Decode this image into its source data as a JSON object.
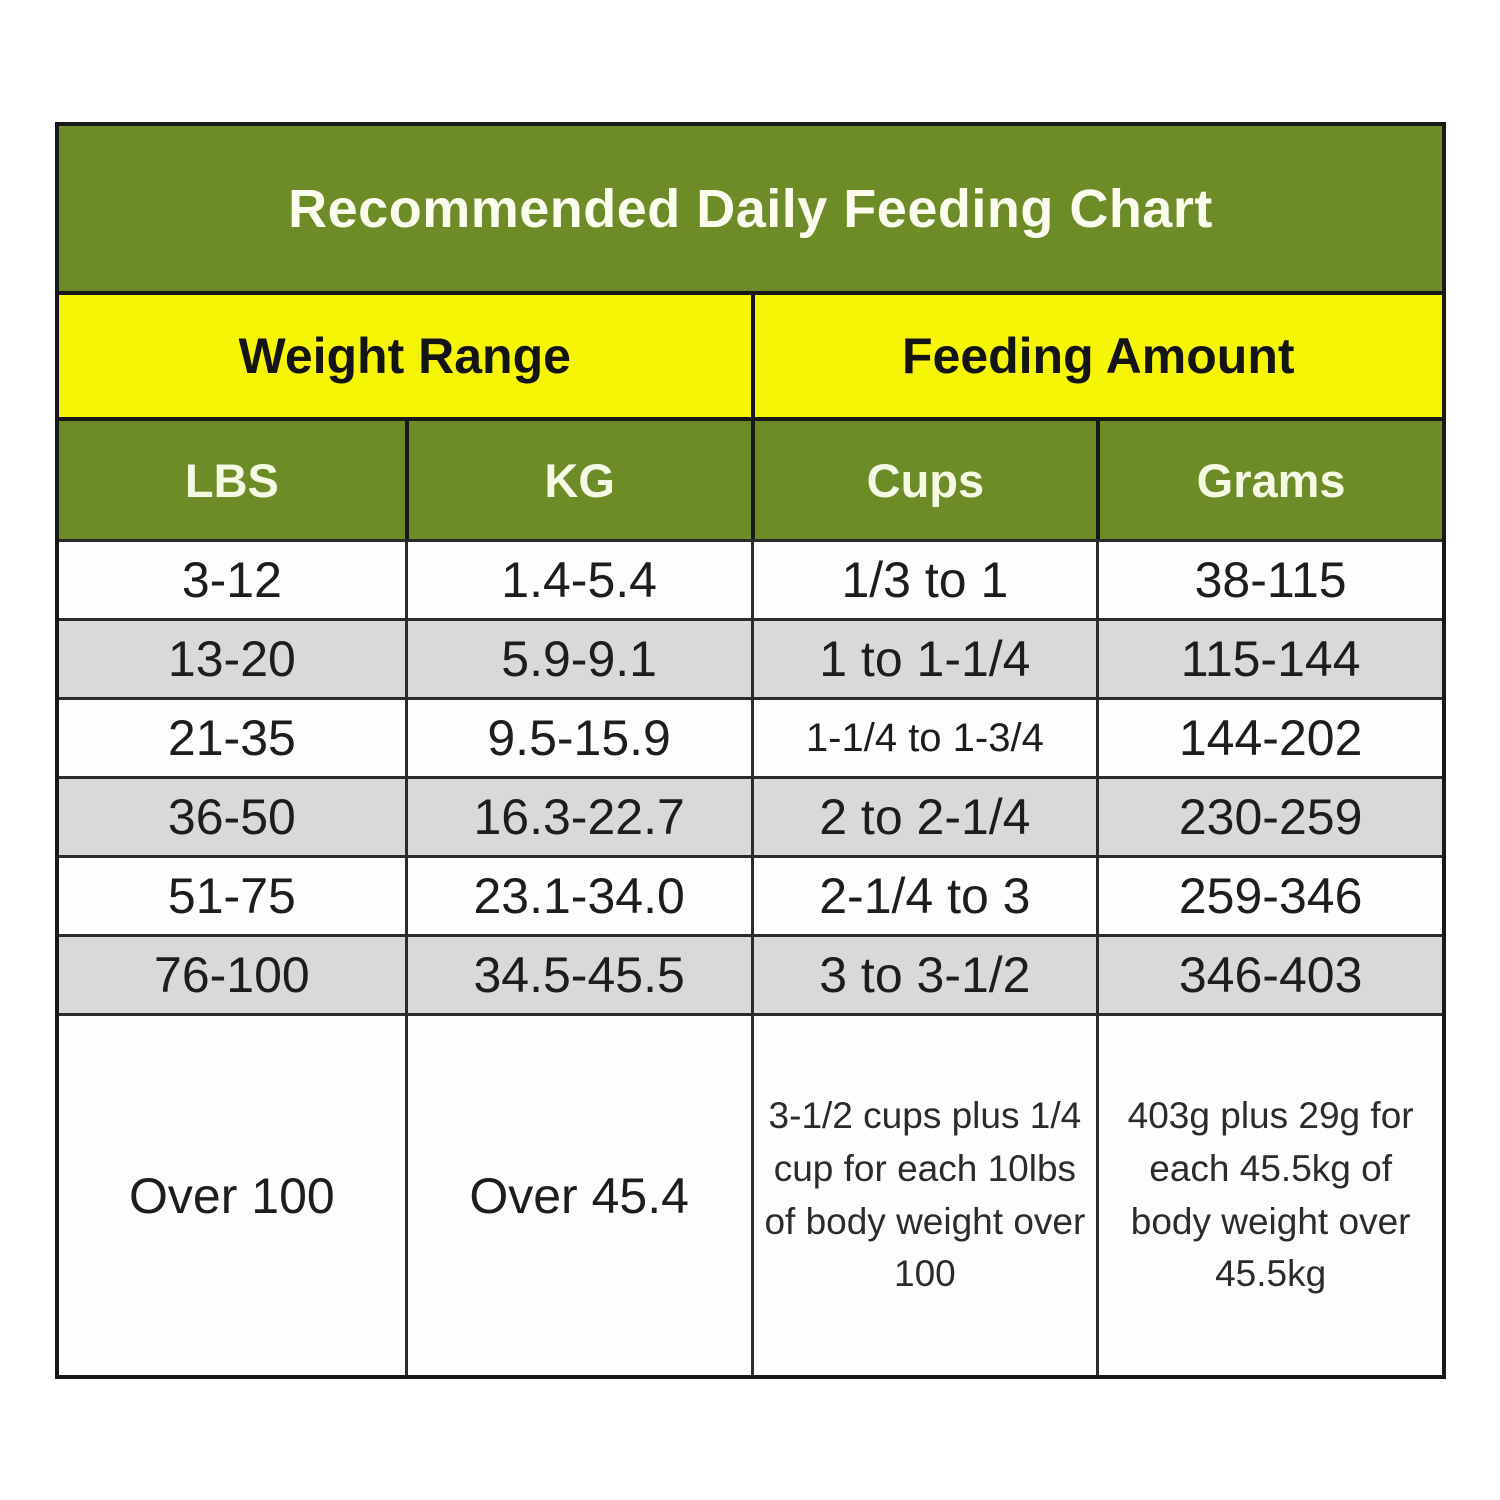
{
  "chart_data": {
    "type": "table",
    "title": "Recommended Daily Feeding Chart",
    "column_groups": [
      {
        "label": "Weight Range",
        "columns": [
          "LBS",
          "KG"
        ]
      },
      {
        "label": "Feeding Amount",
        "columns": [
          "Cups",
          "Grams"
        ]
      }
    ],
    "columns": [
      "LBS",
      "KG",
      "Cups",
      "Grams"
    ],
    "rows": [
      [
        "3-12",
        "1.4-5.4",
        "1/3 to 1",
        "38-115"
      ],
      [
        "13-20",
        "5.9-9.1",
        "1 to 1-1/4",
        "115-144"
      ],
      [
        "21-35",
        "9.5-15.9",
        "1-1/4 to 1-3/4",
        "144-202"
      ],
      [
        "36-50",
        "16.3-22.7",
        "2 to 2-1/4",
        "230-259"
      ],
      [
        "51-75",
        "23.1-34.0",
        "2-1/4 to 3",
        "259-346"
      ],
      [
        "76-100",
        "34.5-45.5",
        "3 to 3-1/2",
        "346-403"
      ],
      [
        "Over 100",
        "Over 45.4",
        "3-1/2 cups plus 1/4 cup for each 10lbs of body weight over 100",
        "403g plus 29g for each 45.5kg of body weight over 45.5kg"
      ]
    ],
    "layout_hints": {
      "row_striping": [
        "white",
        "gray",
        "white",
        "gray",
        "white",
        "gray",
        "white"
      ],
      "grid": "black ruled borders, four equal columns"
    }
  },
  "colors": {
    "header_green": "#6d8c28",
    "group_yellow": "#f6f505",
    "stripe_gray": "#d9d9d9",
    "stripe_white": "#fdfdfd",
    "border_black": "#181818",
    "title_text": "#fbfcee",
    "cell_text": "#1d1d1d"
  }
}
